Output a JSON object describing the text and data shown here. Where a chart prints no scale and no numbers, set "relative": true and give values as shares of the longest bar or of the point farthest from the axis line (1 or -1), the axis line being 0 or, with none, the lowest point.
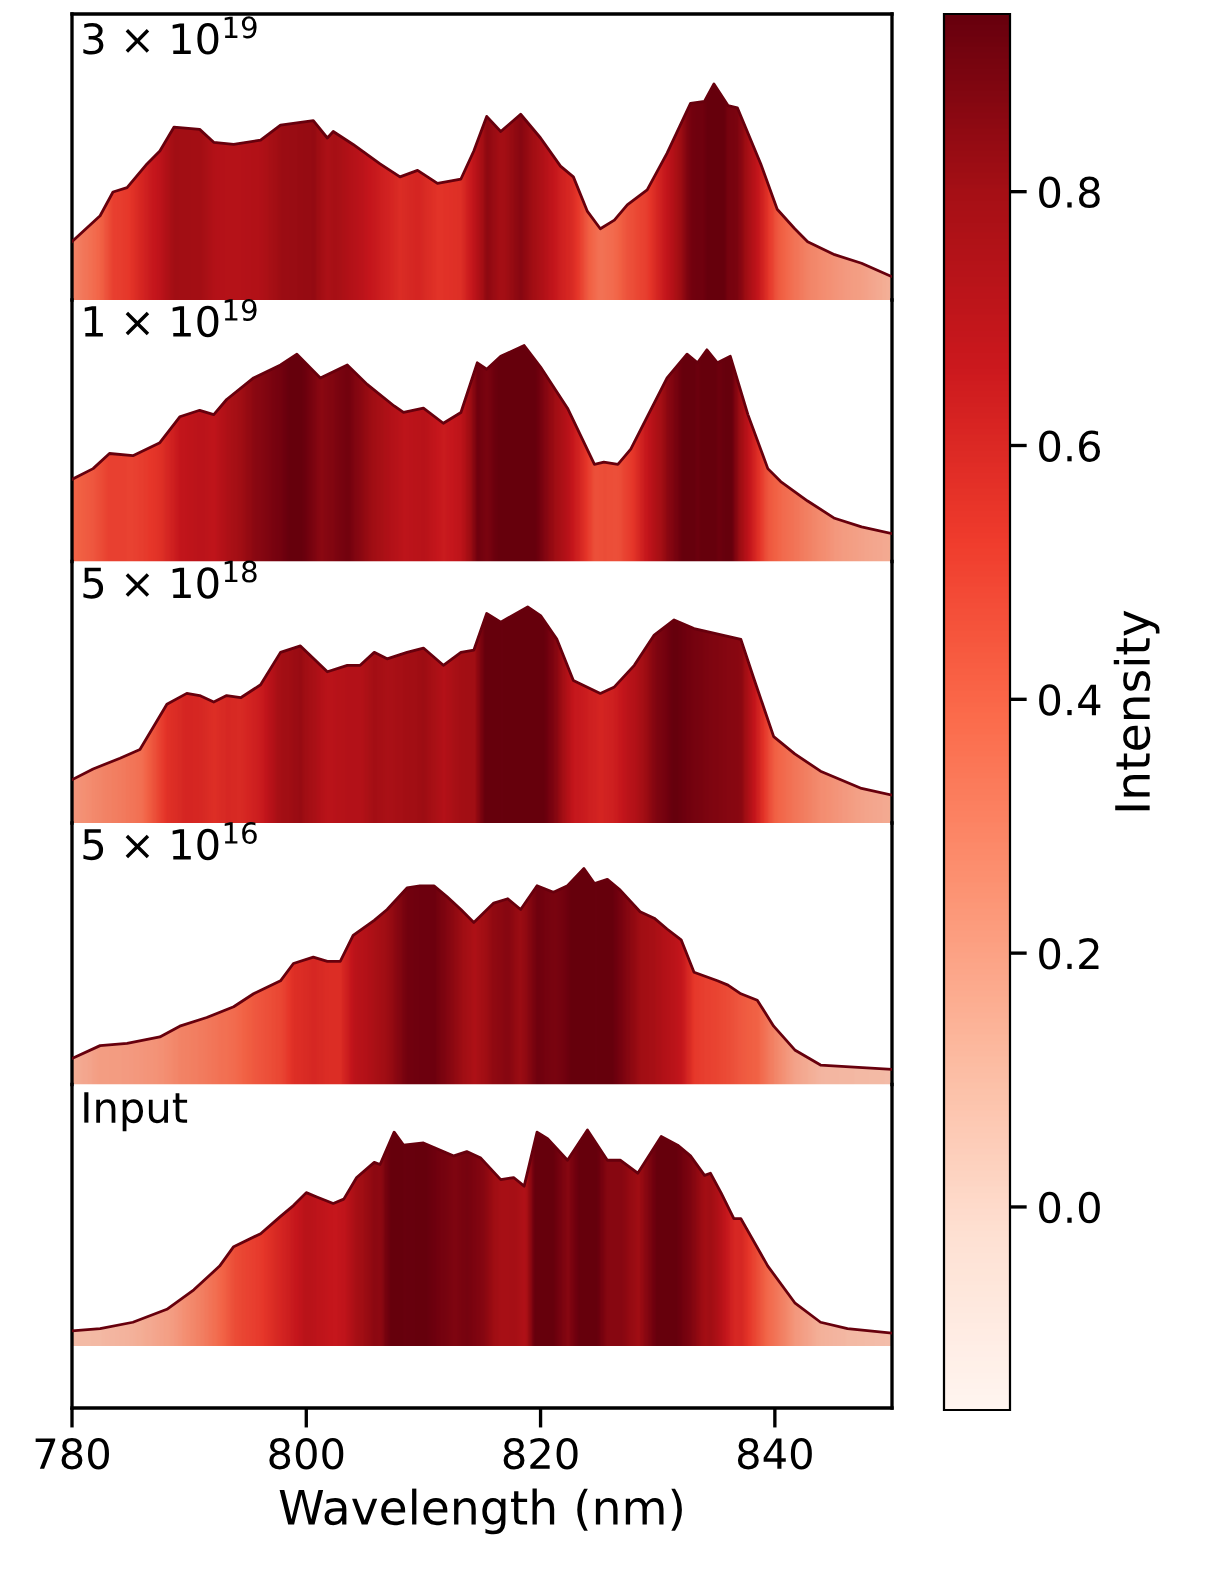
{
  "chart_data": [
    {
      "type": "area",
      "relative": true,
      "xlim": [
        780,
        850
      ],
      "tick_labels": false,
      "x": [
        780.0,
        782.4,
        783.5,
        784.7,
        786.4,
        787.5,
        788.7,
        790.9,
        792.1,
        793.8,
        796.1,
        797.8,
        800.6,
        801.8,
        802.3,
        804.0,
        806.3,
        808.0,
        809.5,
        811.2,
        813.2,
        814.3,
        815.4,
        816.6,
        818.3,
        820.0,
        821.7,
        822.8,
        824.0,
        825.1,
        826.3,
        827.4,
        829.1,
        830.8,
        832.8,
        834.0,
        834.8,
        836.0,
        836.8,
        838.8,
        840.2,
        841.7,
        842.8,
        845.1,
        847.4,
        849.9
      ],
      "series": [
        {
          "name": "3 × 10$^{19}$",
          "color": "#67000d",
          "values": [
            0.27,
            0.39,
            0.5,
            0.52,
            0.63,
            0.69,
            0.8,
            0.79,
            0.73,
            0.72,
            0.74,
            0.81,
            0.83,
            0.75,
            0.78,
            0.72,
            0.63,
            0.57,
            0.6,
            0.54,
            0.56,
            0.69,
            0.85,
            0.78,
            0.86,
            0.75,
            0.62,
            0.57,
            0.41,
            0.33,
            0.37,
            0.44,
            0.51,
            0.68,
            0.91,
            0.92,
            1.0,
            0.9,
            0.89,
            0.63,
            0.42,
            0.33,
            0.27,
            0.21,
            0.17,
            0.11
          ]
        }
      ]
    },
    {
      "type": "area",
      "relative": true,
      "xlim": [
        780,
        850
      ],
      "tick_labels": false,
      "x": [
        780.0,
        781.8,
        783.2,
        785.2,
        787.5,
        789.2,
        790.9,
        792.1,
        793.2,
        795.5,
        797.8,
        799.2,
        801.2,
        803.5,
        805.2,
        807.5,
        808.3,
        810.0,
        811.7,
        813.2,
        814.6,
        815.4,
        816.6,
        818.6,
        820.0,
        822.3,
        824.6,
        825.4,
        826.6,
        827.7,
        829.1,
        830.8,
        832.5,
        833.4,
        834.2,
        835.1,
        836.2,
        837.7,
        839.4,
        840.5,
        842.8,
        845.1,
        847.4,
        849.9
      ],
      "series": [
        {
          "name": "1 × 10$^{19}$",
          "color": "#67000d",
          "values": [
            0.38,
            0.43,
            0.5,
            0.49,
            0.55,
            0.67,
            0.7,
            0.68,
            0.75,
            0.85,
            0.91,
            0.96,
            0.85,
            0.91,
            0.82,
            0.72,
            0.69,
            0.71,
            0.64,
            0.69,
            0.92,
            0.89,
            0.95,
            1.0,
            0.9,
            0.71,
            0.45,
            0.46,
            0.45,
            0.52,
            0.67,
            0.85,
            0.96,
            0.92,
            0.98,
            0.92,
            0.95,
            0.68,
            0.43,
            0.37,
            0.28,
            0.2,
            0.16,
            0.13
          ]
        }
      ]
    },
    {
      "type": "area",
      "relative": true,
      "xlim": [
        780,
        850
      ],
      "tick_labels": false,
      "x": [
        780.0,
        781.8,
        784.1,
        785.8,
        788.1,
        789.8,
        790.9,
        792.1,
        793.2,
        794.4,
        796.1,
        797.8,
        799.5,
        801.8,
        803.5,
        804.6,
        805.8,
        806.9,
        808.6,
        810.0,
        811.7,
        813.2,
        814.3,
        815.4,
        816.6,
        818.9,
        820.0,
        821.4,
        822.8,
        825.1,
        826.3,
        828.0,
        829.7,
        831.4,
        833.1,
        837.1,
        838.2,
        839.9,
        841.7,
        843.9,
        847.4,
        849.9
      ],
      "series": [
        {
          "name": "5 × 10$^{18}$",
          "color": "#67000d",
          "values": [
            0.2,
            0.25,
            0.3,
            0.34,
            0.55,
            0.6,
            0.59,
            0.56,
            0.59,
            0.58,
            0.64,
            0.79,
            0.82,
            0.7,
            0.73,
            0.73,
            0.79,
            0.76,
            0.79,
            0.81,
            0.73,
            0.79,
            0.8,
            0.97,
            0.93,
            1.0,
            0.96,
            0.85,
            0.66,
            0.6,
            0.63,
            0.73,
            0.87,
            0.94,
            0.9,
            0.85,
            0.67,
            0.4,
            0.32,
            0.24,
            0.16,
            0.13
          ]
        }
      ]
    },
    {
      "type": "area",
      "relative": true,
      "xlim": [
        780,
        850
      ],
      "tick_labels": false,
      "x": [
        780.0,
        782.4,
        784.7,
        787.5,
        789.2,
        791.5,
        793.8,
        795.5,
        797.8,
        798.9,
        800.6,
        801.8,
        802.9,
        804.0,
        805.8,
        806.9,
        808.6,
        809.7,
        810.9,
        812.0,
        813.2,
        814.3,
        816.0,
        817.2,
        818.3,
        819.7,
        821.1,
        822.3,
        823.7,
        824.6,
        825.7,
        826.8,
        828.5,
        829.7,
        830.8,
        832.0,
        833.1,
        835.1,
        836.0,
        837.1,
        838.5,
        839.9,
        841.7,
        843.9,
        849.9
      ],
      "series": [
        {
          "name": "5 × 10$^{16}$",
          "color": "#67000d",
          "values": [
            0.12,
            0.18,
            0.19,
            0.22,
            0.27,
            0.31,
            0.36,
            0.42,
            0.48,
            0.56,
            0.59,
            0.57,
            0.57,
            0.69,
            0.76,
            0.81,
            0.91,
            0.92,
            0.92,
            0.87,
            0.81,
            0.75,
            0.84,
            0.86,
            0.81,
            0.92,
            0.89,
            0.92,
            1.0,
            0.93,
            0.95,
            0.9,
            0.8,
            0.77,
            0.72,
            0.67,
            0.52,
            0.48,
            0.46,
            0.42,
            0.39,
            0.27,
            0.16,
            0.09,
            0.07
          ]
        }
      ]
    },
    {
      "type": "area",
      "relative": true,
      "xlim": [
        780,
        850
      ],
      "tick_labels": "x",
      "xlabel": "Wavelength (nm)",
      "xticks": [
        780,
        800,
        820,
        840
      ],
      "clabel": "Intensity",
      "clim": [
        -0.16,
        0.94
      ],
      "cticks": [
        {
          "value": 0,
          "label": "0.0"
        },
        0.2,
        0.4,
        0.6,
        0.8
      ],
      "x": [
        780.0,
        782.4,
        785.2,
        788.1,
        790.4,
        792.6,
        793.8,
        796.1,
        797.8,
        798.9,
        800.0,
        800.9,
        802.3,
        803.2,
        804.3,
        805.8,
        806.3,
        807.5,
        808.3,
        810.0,
        812.6,
        813.7,
        814.9,
        816.6,
        817.7,
        818.6,
        819.7,
        820.6,
        822.3,
        824.0,
        825.7,
        826.8,
        828.3,
        830.3,
        831.7,
        832.8,
        834.0,
        834.5,
        835.4,
        836.5,
        837.1,
        839.4,
        841.7,
        843.9,
        846.2,
        849.9
      ],
      "series": [
        {
          "name": "Input",
          "color": "#67000d",
          "values": [
            0.07,
            0.08,
            0.11,
            0.17,
            0.26,
            0.37,
            0.46,
            0.52,
            0.6,
            0.65,
            0.71,
            0.69,
            0.66,
            0.68,
            0.78,
            0.85,
            0.84,
            0.99,
            0.93,
            0.94,
            0.88,
            0.9,
            0.87,
            0.77,
            0.78,
            0.74,
            0.99,
            0.96,
            0.86,
            1.0,
            0.86,
            0.86,
            0.8,
            0.97,
            0.93,
            0.88,
            0.79,
            0.8,
            0.71,
            0.59,
            0.59,
            0.37,
            0.2,
            0.11,
            0.08,
            0.06
          ]
        }
      ]
    }
  ]
}
